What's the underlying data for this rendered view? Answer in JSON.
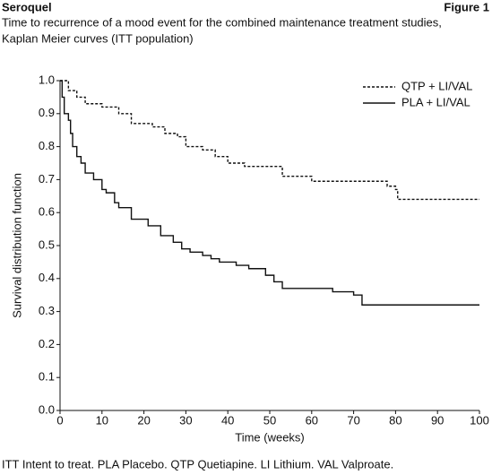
{
  "header": {
    "left": "Seroquel",
    "right": "Figure 1"
  },
  "chart_data": {
    "type": "line",
    "step": true,
    "title": [
      "Time to recurrence of a mood event for the combined maintenance treatment studies,",
      "Kaplan Meier curves (ITT population)"
    ],
    "x_label": "Time (weeks)",
    "y_label": "Survival distribution function",
    "xlim": [
      0,
      100
    ],
    "ylim": [
      0,
      1
    ],
    "xticks": [
      0,
      10,
      20,
      30,
      40,
      50,
      60,
      70,
      80,
      90,
      100
    ],
    "yticks": [
      {
        "value": 0,
        "label": "0.0"
      },
      0.1,
      0.2,
      0.3,
      0.4,
      0.5,
      0.6,
      0.7,
      0.8,
      0.9,
      {
        "value": 1,
        "label": "1.0"
      }
    ],
    "legend": "upper right",
    "series": [
      {
        "name": "QTP + LI/VAL",
        "color": "#111111",
        "dash": true,
        "x": [
          0,
          2,
          4,
          6,
          10,
          14,
          17,
          22,
          25,
          28,
          30,
          34,
          37,
          40,
          44,
          53,
          60,
          78,
          80,
          80.5,
          100
        ],
        "values": [
          1,
          0.97,
          0.95,
          0.93,
          0.92,
          0.9,
          0.87,
          0.86,
          0.84,
          0.83,
          0.8,
          0.79,
          0.77,
          0.75,
          0.74,
          0.71,
          0.695,
          0.68,
          0.67,
          0.64,
          0.64
        ]
      },
      {
        "name": "PLA + LI/VAL",
        "color": "#111111",
        "dash": false,
        "x": [
          0,
          0.5,
          1,
          2,
          2.5,
          3,
          4,
          5,
          6,
          8,
          10,
          11,
          13,
          14,
          17,
          21,
          24,
          27,
          29,
          31,
          34,
          36,
          38,
          42,
          45,
          49,
          51,
          53,
          65,
          70,
          72,
          100
        ],
        "values": [
          1,
          0.95,
          0.9,
          0.88,
          0.84,
          0.8,
          0.77,
          0.75,
          0.72,
          0.7,
          0.67,
          0.66,
          0.63,
          0.615,
          0.58,
          0.56,
          0.53,
          0.51,
          0.49,
          0.48,
          0.47,
          0.46,
          0.45,
          0.44,
          0.43,
          0.41,
          0.39,
          0.37,
          0.36,
          0.35,
          0.32,
          0.32
        ]
      }
    ]
  },
  "footnote": "ITT Intent to treat. PLA Placebo. QTP Quetiapine. LI Lithium. VAL Valproate."
}
